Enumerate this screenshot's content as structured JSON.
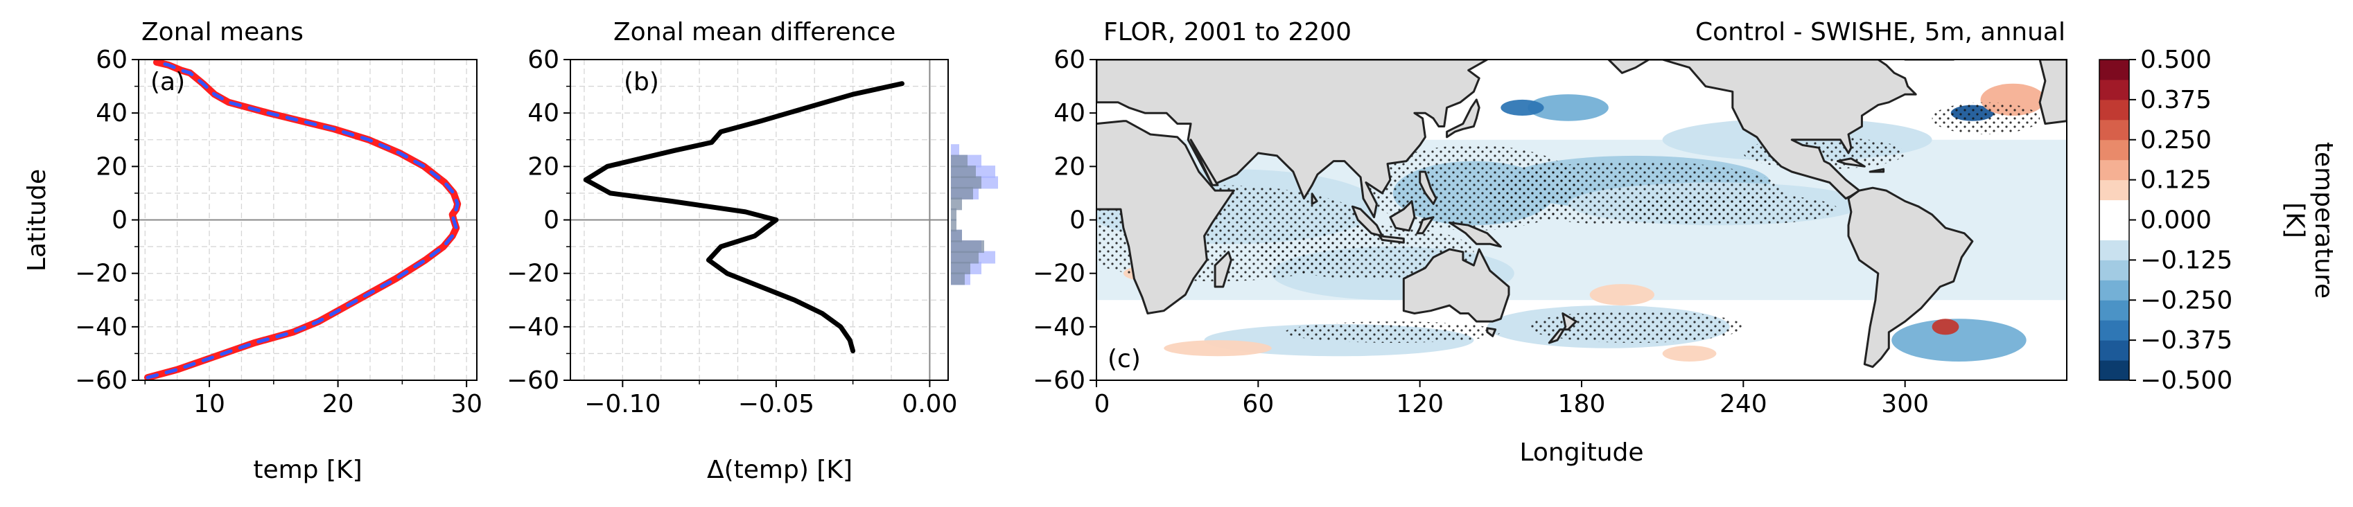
{
  "chart_data": [
    {
      "id": "a",
      "type": "line",
      "title": "Zonal means",
      "panel_label": "(a)",
      "xlabel": "temp [K]",
      "ylabel": "Latitude",
      "xlim": [
        4.5,
        30.8
      ],
      "ylim": [
        -60,
        60
      ],
      "xticks": [
        10,
        20,
        30
      ],
      "yticks": [
        -60,
        -40,
        -20,
        0,
        20,
        40,
        60
      ],
      "grid": true,
      "zero_line": true,
      "series": [
        {
          "color": "#ff1f1f",
          "style": "solid",
          "x": [
            5.2,
            7.5,
            10.5,
            13.5,
            16.5,
            18.5,
            21.5,
            24.5,
            26.8,
            28.2,
            28.9,
            29.2,
            29.0,
            28.9,
            29.2,
            29.3,
            29.0,
            28.3,
            26.7,
            24.8,
            22.4,
            19.7,
            14.6,
            11.5,
            10.4,
            9.5,
            8.5,
            7.8,
            6.8,
            5.9
          ],
          "y": [
            -59,
            -56,
            -51,
            -46,
            -42,
            -38,
            -30,
            -22,
            -15,
            -10,
            -6,
            -3,
            0,
            2,
            4,
            6,
            10,
            14,
            20,
            25,
            30,
            34,
            40,
            44,
            47,
            51,
            55,
            56,
            58,
            59
          ]
        },
        {
          "color": "#3355ff",
          "style": "dashed",
          "x": [
            5.2,
            7.5,
            10.5,
            13.5,
            16.5,
            18.5,
            21.5,
            24.5,
            26.8,
            28.2,
            28.9,
            29.2,
            29.0,
            28.9,
            29.2,
            29.3,
            29.0,
            28.3,
            26.7,
            24.8,
            22.4,
            19.7,
            14.6,
            11.5,
            10.4,
            9.5,
            8.5,
            7.8,
            6.8,
            5.9
          ],
          "y": [
            -59,
            -56,
            -51,
            -46,
            -42,
            -38,
            -30,
            -22,
            -15,
            -10,
            -6,
            -3,
            0,
            2,
            4,
            6,
            10,
            14,
            20,
            25,
            30,
            34,
            40,
            44,
            47,
            51,
            55,
            56,
            58,
            59
          ]
        }
      ]
    },
    {
      "id": "b",
      "type": "line",
      "title": "Zonal mean difference",
      "panel_label": "(b)",
      "xlabel": "Δ(temp) [K]",
      "ylabel": "",
      "xlim": [
        -0.117,
        0.006
      ],
      "ylim": [
        -60,
        60
      ],
      "xticks": [
        -0.1,
        -0.05,
        0.0
      ],
      "xticklabels": [
        "−0.10",
        "−0.05",
        "0.00"
      ],
      "yticks": [
        -60,
        -40,
        -20,
        0,
        20,
        40,
        60
      ],
      "grid": true,
      "zero_line": true,
      "series": [
        {
          "color": "#000000",
          "x": [
            -0.025,
            -0.026,
            -0.029,
            -0.035,
            -0.044,
            -0.055,
            -0.066,
            -0.072,
            -0.068,
            -0.057,
            -0.05,
            -0.06,
            -0.084,
            -0.104,
            -0.112,
            -0.105,
            -0.083,
            -0.071,
            -0.068,
            -0.055,
            -0.04,
            -0.025,
            -0.009
          ],
          "y": [
            -49,
            -45,
            -40,
            -35,
            -30,
            -25,
            -20,
            -15,
            -10,
            -6,
            0,
            3,
            7,
            10,
            15,
            20,
            26,
            29,
            33,
            37,
            42,
            47,
            51
          ]
        }
      ],
      "side_histograms": [
        {
          "name": "steelgray",
          "color": "#7f8fa6",
          "lat": [
            22,
            18,
            14,
            10,
            6,
            2,
            -2,
            -6,
            -10,
            -14,
            -18,
            -22
          ],
          "width": [
            0.3,
            0.45,
            0.55,
            0.4,
            0.2,
            0.1,
            0.1,
            0.2,
            0.6,
            0.5,
            0.35,
            0.25
          ]
        },
        {
          "name": "lavender",
          "color": "#aab4ff",
          "lat": [
            26,
            22,
            18,
            14,
            10,
            -6,
            -10,
            -14,
            -18,
            -22
          ],
          "width": [
            0.15,
            0.55,
            0.8,
            0.85,
            0.5,
            0.2,
            0.55,
            0.8,
            0.55,
            0.35
          ]
        }
      ]
    },
    {
      "id": "c",
      "type": "heatmap",
      "title_left": "FLOR, 2001 to 2200",
      "title_right": "Control - SWISHE, 5m, annual",
      "panel_label": "(c)",
      "xlabel": "Longitude",
      "ylabel": "",
      "xlim": [
        0,
        360
      ],
      "ylim": [
        -60,
        60
      ],
      "xticks": [
        0,
        60,
        120,
        180,
        240,
        300
      ],
      "yticks": [
        -60,
        -40,
        -20,
        0,
        20,
        40,
        60
      ],
      "land_color": "#dcdcdc",
      "stippling": "significance",
      "anomaly_regions": [
        {
          "lon": 50,
          "lat": 5,
          "rx": 55,
          "ry": 14,
          "value": -0.1
        },
        {
          "lon": 140,
          "lat": 10,
          "rx": 30,
          "ry": 12,
          "value": -0.15
        },
        {
          "lon": 200,
          "lat": 14,
          "rx": 50,
          "ry": 10,
          "value": -0.15
        },
        {
          "lon": 230,
          "lat": 6,
          "rx": 55,
          "ry": 8,
          "value": -0.1
        },
        {
          "lon": 110,
          "lat": -20,
          "rx": 45,
          "ry": 10,
          "value": -0.1
        },
        {
          "lon": 90,
          "lat": -45,
          "rx": 50,
          "ry": 6,
          "value": -0.08
        },
        {
          "lon": 190,
          "lat": -40,
          "rx": 45,
          "ry": 8,
          "value": -0.08
        },
        {
          "lon": 260,
          "lat": 30,
          "rx": 50,
          "ry": 8,
          "value": -0.1
        },
        {
          "lon": 320,
          "lat": -45,
          "rx": 25,
          "ry": 8,
          "value": -0.2
        },
        {
          "lon": 175,
          "lat": 42,
          "rx": 15,
          "ry": 5,
          "value": -0.2
        },
        {
          "lon": 325,
          "lat": 40,
          "rx": 8,
          "ry": 3,
          "value": -0.4
        },
        {
          "lon": 158,
          "lat": 42,
          "rx": 8,
          "ry": 3,
          "value": -0.35
        },
        {
          "lon": 315,
          "lat": -40,
          "rx": 5,
          "ry": 3,
          "value": 0.35
        },
        {
          "lon": 340,
          "lat": 45,
          "rx": 12,
          "ry": 6,
          "value": 0.15
        },
        {
          "lon": 45,
          "lat": -48,
          "rx": 20,
          "ry": 3,
          "value": 0.12
        },
        {
          "lon": 20,
          "lat": -20,
          "rx": 10,
          "ry": 3,
          "value": 0.12
        },
        {
          "lon": 195,
          "lat": -28,
          "rx": 12,
          "ry": 4,
          "value": 0.12
        },
        {
          "lon": 220,
          "lat": -50,
          "rx": 10,
          "ry": 3,
          "value": 0.12
        }
      ]
    },
    {
      "id": "colorbar",
      "type": "colorbar",
      "label": "temperature\n[K]",
      "range": [
        -0.5,
        0.5
      ],
      "levels": [
        -0.5,
        -0.4375,
        -0.375,
        -0.3125,
        -0.25,
        -0.1875,
        -0.125,
        -0.0625,
        0.0625,
        0.125,
        0.1875,
        0.25,
        0.3125,
        0.375,
        0.4375,
        0.5
      ],
      "ticks": [
        -0.5,
        -0.375,
        -0.25,
        -0.125,
        0.0,
        0.125,
        0.25,
        0.375,
        0.5
      ],
      "ticklabels": [
        "−0.500",
        "−0.375",
        "−0.250",
        "−0.125",
        "0.000",
        "0.125",
        "0.250",
        "0.375",
        "0.500"
      ],
      "colors": [
        "#0b3c6e",
        "#1c5a99",
        "#2f77b5",
        "#4b93c6",
        "#74b0d6",
        "#a2cbe3",
        "#c9e1ef",
        "#ffffff",
        "#fbd4bd",
        "#f5b093",
        "#e98a6a",
        "#d7604a",
        "#c13a32",
        "#a11a28",
        "#7d0a1f"
      ]
    }
  ]
}
